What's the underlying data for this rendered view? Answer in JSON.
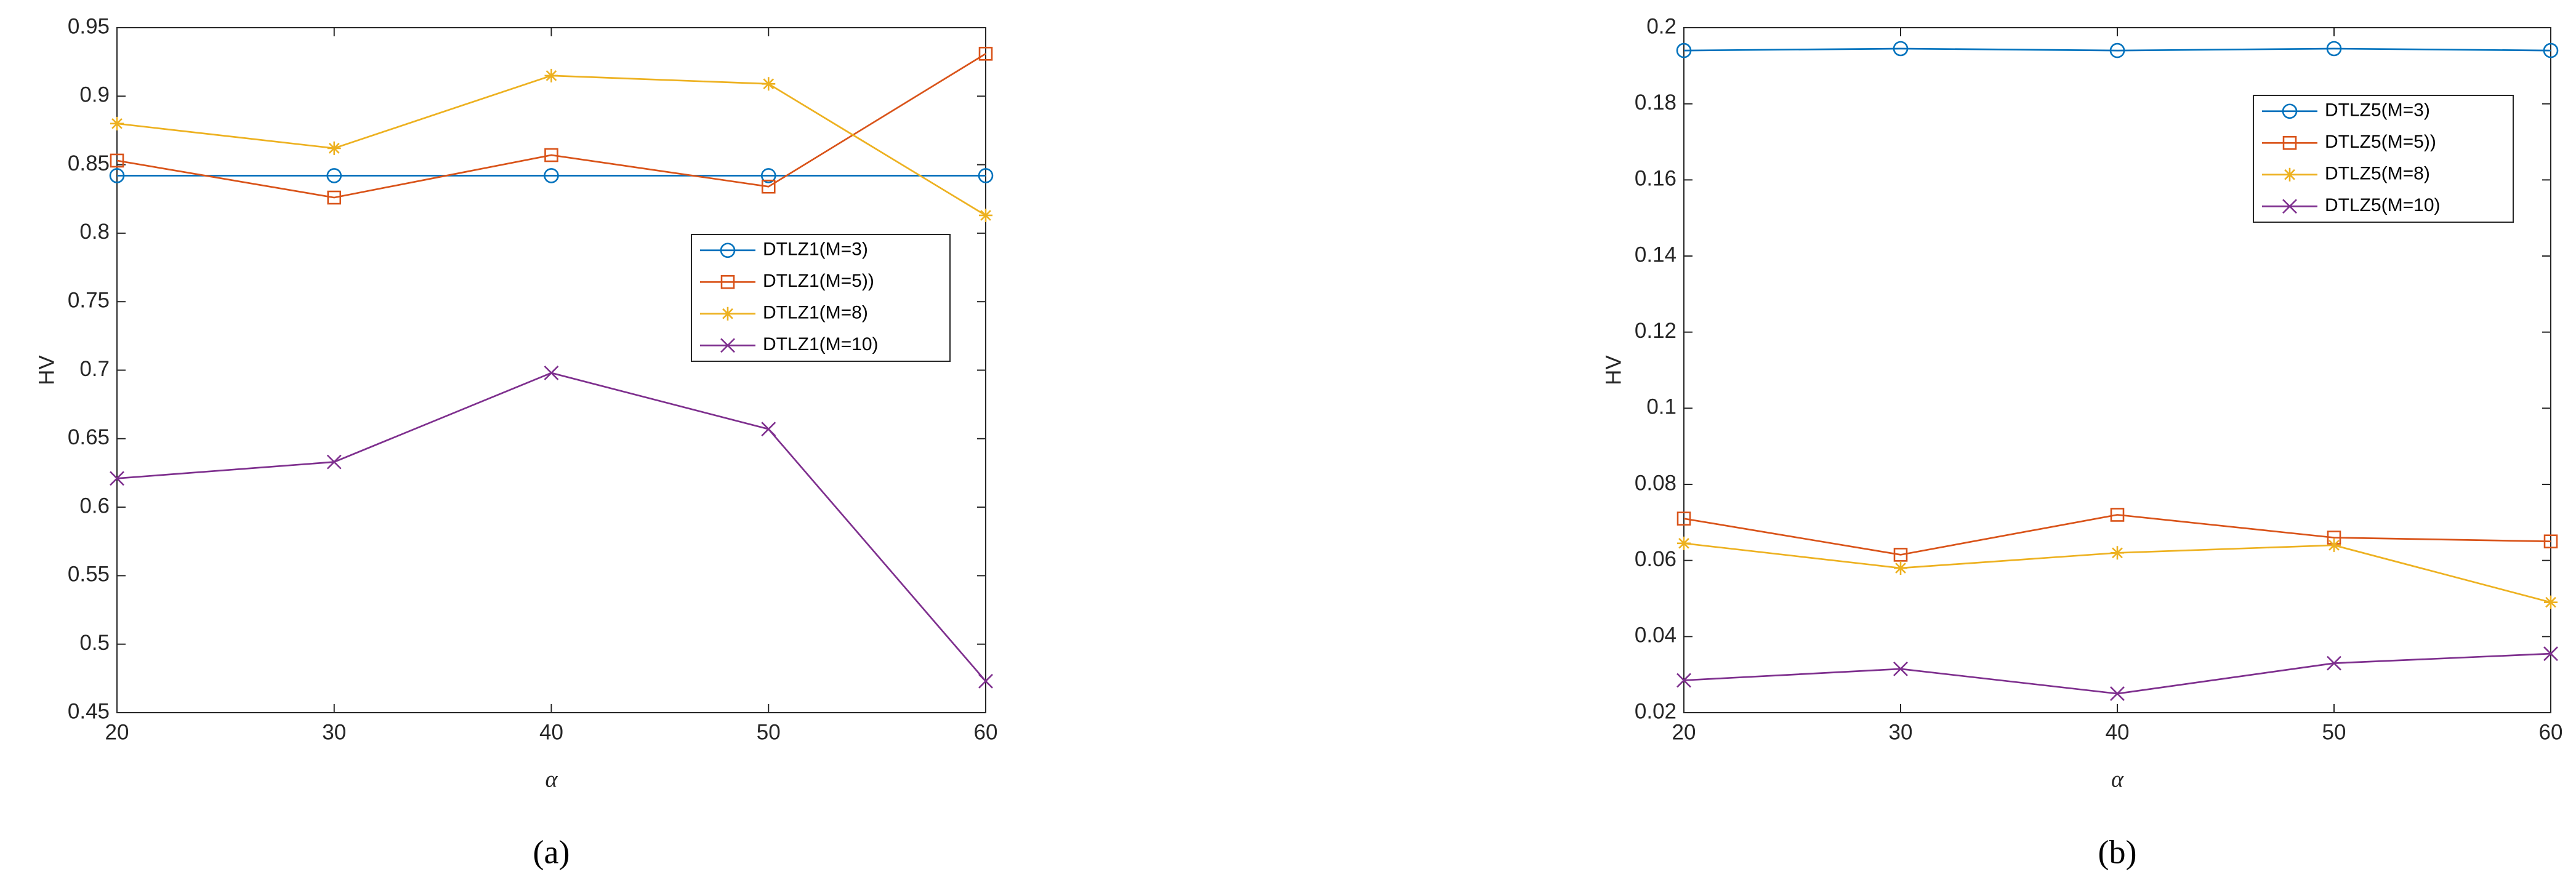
{
  "chart_data": [
    {
      "type": "line",
      "caption": "(a)",
      "xlabel": "α",
      "ylabel": "HV",
      "x": [
        20,
        30,
        40,
        50,
        60
      ],
      "xlim": [
        20,
        60
      ],
      "xticks": [
        20,
        30,
        40,
        50,
        60
      ],
      "ylim": [
        0.45,
        0.95
      ],
      "yticks": [
        0.45,
        0.5,
        0.55,
        0.6,
        0.65,
        0.7,
        0.75,
        0.8,
        0.85,
        0.9,
        0.95
      ],
      "grid": false,
      "legend": "right",
      "series": [
        {
          "name": "DTLZ1(M=3)",
          "color": "#0072BD",
          "marker": "circle",
          "values": [
            0.842,
            0.842,
            0.842,
            0.842,
            0.842
          ]
        },
        {
          "name": "DTLZ1(M=5))",
          "color": "#D95319",
          "marker": "square",
          "values": [
            0.853,
            0.826,
            0.857,
            0.834,
            0.931
          ]
        },
        {
          "name": "DTLZ1(M=8)",
          "color": "#EDB120",
          "marker": "star",
          "values": [
            0.88,
            0.862,
            0.915,
            0.909,
            0.813
          ]
        },
        {
          "name": "DTLZ1(M=10)",
          "color": "#7E2F8E",
          "marker": "cross",
          "values": [
            0.621,
            0.633,
            0.698,
            0.657,
            0.473
          ]
        }
      ]
    },
    {
      "type": "line",
      "caption": "(b)",
      "xlabel": "α",
      "ylabel": "HV",
      "x": [
        20,
        30,
        40,
        50,
        60
      ],
      "xlim": [
        20,
        60
      ],
      "xticks": [
        20,
        30,
        40,
        50,
        60
      ],
      "ylim": [
        0.02,
        0.2
      ],
      "yticks": [
        0.02,
        0.04,
        0.06,
        0.08,
        0.1,
        0.12,
        0.14,
        0.16,
        0.18,
        0.2
      ],
      "grid": false,
      "legend": "top-right",
      "series": [
        {
          "name": "DTLZ5(M=3)",
          "color": "#0072BD",
          "marker": "circle",
          "values": [
            0.194,
            0.1945,
            0.194,
            0.1945,
            0.194
          ]
        },
        {
          "name": "DTLZ5(M=5))",
          "color": "#D95319",
          "marker": "square",
          "values": [
            0.071,
            0.0615,
            0.072,
            0.066,
            0.065
          ]
        },
        {
          "name": "DTLZ5(M=8)",
          "color": "#EDB120",
          "marker": "star",
          "values": [
            0.0645,
            0.058,
            0.062,
            0.064,
            0.049
          ]
        },
        {
          "name": "DTLZ5(M=10)",
          "color": "#7E2F8E",
          "marker": "cross",
          "values": [
            0.0285,
            0.0315,
            0.025,
            0.033,
            0.0355
          ]
        }
      ]
    }
  ]
}
